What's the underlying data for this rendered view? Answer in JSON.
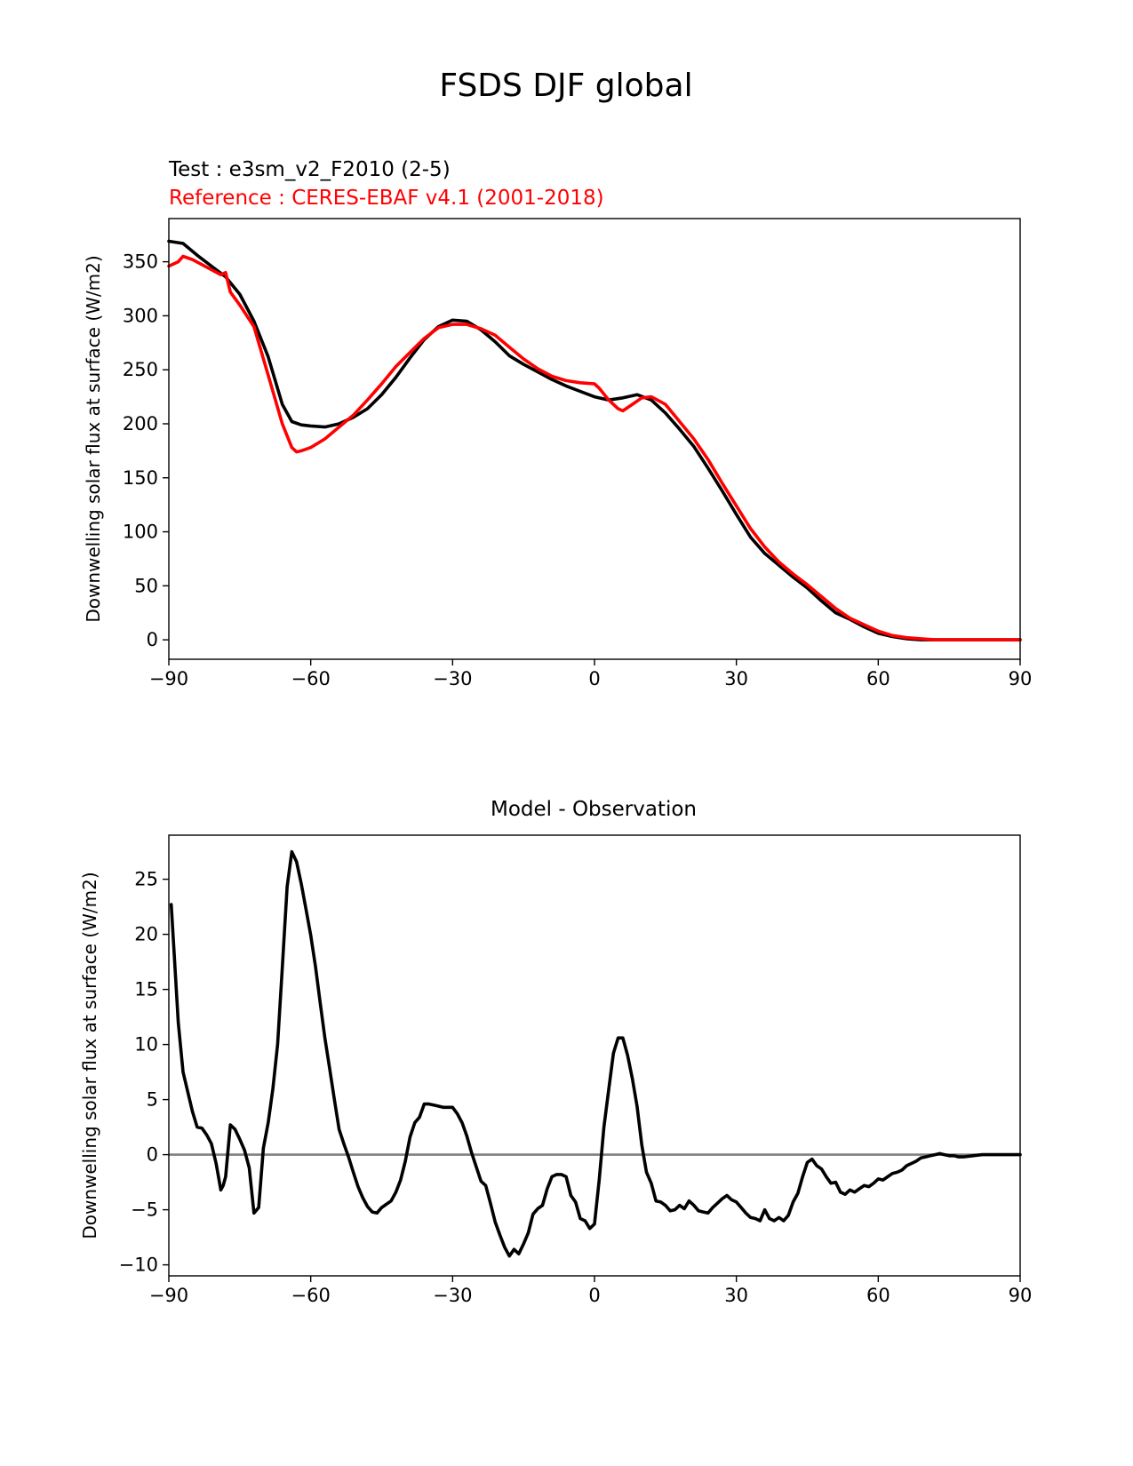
{
  "figure": {
    "title": "FSDS DJF global"
  },
  "chart_data": [
    {
      "type": "line",
      "test_label": "Test : e3sm_v2_F2010 (2-5)",
      "reference_label": "Reference : CERES-EBAF v4.1 (2001-2018)",
      "title": "",
      "xlabel": "",
      "ylabel": "Downwelling solar flux at surface (W/m2)",
      "xlim": [
        -90,
        90
      ],
      "ylim": [
        -18,
        390
      ],
      "xticks": [
        -90,
        -60,
        -30,
        0,
        30,
        60,
        90
      ],
      "xtick_labels": [
        "−90",
        "−60",
        "−30",
        "0",
        "30",
        "60",
        "90"
      ],
      "yticks": [
        0,
        50,
        100,
        150,
        200,
        250,
        300,
        350
      ],
      "ytick_labels": [
        "0",
        "50",
        "100",
        "150",
        "200",
        "250",
        "300",
        "350"
      ],
      "grid": false,
      "series": [
        {
          "color": "#000000",
          "x": [
            -90,
            -87,
            -84,
            -81,
            -78,
            -75,
            -72,
            -69,
            -66,
            -64,
            -62,
            -60,
            -57,
            -54,
            -51,
            -48,
            -45,
            -42,
            -39,
            -36,
            -33,
            -30,
            -27,
            -24,
            -21,
            -18,
            -15,
            -12,
            -9,
            -6,
            -3,
            0,
            3,
            6,
            9,
            12,
            15,
            18,
            21,
            24,
            27,
            30,
            33,
            36,
            39,
            42,
            45,
            48,
            51,
            54,
            57,
            60,
            63,
            66,
            69,
            72,
            75,
            78,
            81,
            84,
            87,
            90
          ],
          "y": [
            369,
            367,
            356,
            346,
            336,
            320,
            295,
            262,
            218,
            202,
            199,
            198,
            197,
            200,
            206,
            214,
            227,
            243,
            261,
            278,
            290,
            296,
            295,
            287,
            276,
            263,
            255,
            248,
            241,
            235,
            230,
            225,
            222,
            224,
            227,
            222,
            210,
            195,
            179,
            159,
            138,
            116,
            95,
            80,
            69,
            58,
            48,
            36,
            25,
            19,
            12,
            6,
            3,
            1,
            0,
            0,
            0,
            0,
            0,
            0,
            0,
            0
          ]
        },
        {
          "color": "#ff0000",
          "x": [
            -90,
            -88,
            -87,
            -85,
            -82,
            -79,
            -78,
            -77,
            -75,
            -72,
            -69,
            -66,
            -64,
            -63,
            -62,
            -60,
            -57,
            -54,
            -51,
            -48,
            -45,
            -42,
            -39,
            -36,
            -33,
            -30,
            -27,
            -24,
            -21,
            -18,
            -15,
            -12,
            -9,
            -6,
            -3,
            0,
            1,
            3,
            5,
            6,
            8,
            10,
            12,
            15,
            18,
            21,
            24,
            27,
            30,
            33,
            36,
            39,
            42,
            45,
            48,
            51,
            54,
            57,
            60,
            63,
            66,
            69,
            72,
            75,
            78,
            81,
            84,
            87,
            90
          ],
          "y": [
            346,
            350,
            355,
            352,
            345,
            338,
            340,
            322,
            310,
            290,
            245,
            200,
            178,
            174,
            175,
            178,
            186,
            197,
            208,
            222,
            237,
            253,
            266,
            279,
            289,
            292,
            292,
            288,
            282,
            271,
            260,
            251,
            244,
            240,
            238,
            237,
            233,
            222,
            214,
            212,
            218,
            224,
            225,
            218,
            202,
            186,
            167,
            145,
            124,
            103,
            86,
            72,
            61,
            51,
            40,
            29,
            20,
            14,
            8,
            4,
            2,
            1,
            0,
            0,
            0,
            0,
            0,
            0,
            0
          ]
        }
      ]
    },
    {
      "type": "line",
      "title": "Model - Observation",
      "xlabel": "",
      "ylabel": "Downwelling solar flux at surface (W/m2)",
      "xlim": [
        -90,
        90
      ],
      "ylim": [
        -11,
        29
      ],
      "xticks": [
        -90,
        -60,
        -30,
        0,
        30,
        60,
        90
      ],
      "xtick_labels": [
        "−90",
        "−60",
        "−30",
        "0",
        "30",
        "60",
        "90"
      ],
      "yticks": [
        -10,
        -5,
        0,
        5,
        10,
        15,
        20,
        25
      ],
      "ytick_labels": [
        "−10",
        "−5",
        "0",
        "5",
        "10",
        "15",
        "20",
        "25"
      ],
      "grid": false,
      "zero_line_color": "#808080",
      "series": [
        {
          "color": "#000000",
          "x": [
            -89.5,
            -89,
            -88,
            -87,
            -86,
            -85,
            -84,
            -83,
            -82,
            -81,
            -80,
            -79,
            -78.5,
            -78,
            -77,
            -76,
            -75,
            -74,
            -73,
            -72,
            -71,
            -70,
            -69,
            -68,
            -67,
            -66,
            -65,
            -64,
            -63,
            -62,
            -61,
            -60,
            -59,
            -58,
            -57,
            -56,
            -55,
            -54,
            -53,
            -52,
            -51,
            -50,
            -49,
            -48,
            -47,
            -46,
            -45,
            -44,
            -43,
            -42,
            -41,
            -40,
            -39,
            -38,
            -37,
            -36,
            -35,
            -34,
            -33,
            -32,
            -31,
            -30,
            -29,
            -28,
            -27,
            -26,
            -25,
            -24,
            -23,
            -22,
            -21,
            -20,
            -19,
            -18,
            -17,
            -16,
            -15,
            -14,
            -13,
            -12,
            -11,
            -10,
            -9,
            -8,
            -7,
            -6,
            -5,
            -4,
            -3,
            -2,
            -1,
            0,
            1,
            2,
            3,
            4,
            5,
            6,
            7,
            8,
            9,
            10,
            11,
            12,
            13,
            14,
            15,
            16,
            17,
            18,
            19,
            20,
            21,
            22,
            23,
            24,
            25,
            26,
            27,
            28,
            29,
            30,
            31,
            32,
            33,
            34,
            35,
            36,
            37,
            38,
            39,
            40,
            41,
            42,
            43,
            44,
            45,
            46,
            47,
            48,
            49,
            50,
            51,
            52,
            53,
            54,
            55,
            56,
            57,
            58,
            59,
            60,
            61,
            62,
            63,
            64,
            65,
            66,
            67,
            68,
            69,
            70,
            71,
            72,
            73,
            74,
            75,
            76,
            77,
            78,
            80,
            82,
            84,
            86,
            88,
            90
          ],
          "y": [
            22.7,
            19.2,
            12.0,
            7.5,
            5.7,
            3.9,
            2.5,
            2.4,
            1.8,
            1.0,
            -0.8,
            -3.2,
            -2.8,
            -2.0,
            2.7,
            2.3,
            1.4,
            0.4,
            -1.2,
            -5.3,
            -4.8,
            0.6,
            2.9,
            6.0,
            10.0,
            17.0,
            24.3,
            27.5,
            26.6,
            24.6,
            22.3,
            19.9,
            17.1,
            13.8,
            10.6,
            7.8,
            5.0,
            2.3,
            1.0,
            -0.2,
            -1.6,
            -2.9,
            -3.9,
            -4.7,
            -5.2,
            -5.3,
            -4.8,
            -4.5,
            -4.2,
            -3.4,
            -2.3,
            -0.6,
            1.6,
            2.9,
            3.4,
            4.6,
            4.6,
            4.5,
            4.4,
            4.3,
            4.3,
            4.3,
            3.7,
            2.9,
            1.7,
            0.2,
            -1.1,
            -2.4,
            -2.8,
            -4.4,
            -6.1,
            -7.3,
            -8.4,
            -9.2,
            -8.6,
            -9.0,
            -8.1,
            -7.1,
            -5.4,
            -4.9,
            -4.6,
            -3.1,
            -2.0,
            -1.8,
            -1.8,
            -2.0,
            -3.7,
            -4.3,
            -5.8,
            -6.0,
            -6.7,
            -6.3,
            -2.3,
            2.5,
            5.9,
            9.2,
            10.6,
            10.6,
            9.0,
            6.9,
            4.4,
            0.9,
            -1.6,
            -2.6,
            -4.2,
            -4.3,
            -4.6,
            -5.1,
            -5.0,
            -4.6,
            -4.9,
            -4.2,
            -4.6,
            -5.1,
            -5.2,
            -5.3,
            -4.8,
            -4.4,
            -4.0,
            -3.7,
            -4.1,
            -4.3,
            -4.8,
            -5.3,
            -5.7,
            -5.8,
            -6.0,
            -5.0,
            -5.8,
            -6.0,
            -5.7,
            -6.0,
            -5.5,
            -4.3,
            -3.5,
            -2.0,
            -0.7,
            -0.4,
            -1.0,
            -1.3,
            -2.0,
            -2.6,
            -2.5,
            -3.4,
            -3.6,
            -3.2,
            -3.4,
            -3.1,
            -2.8,
            -2.9,
            -2.6,
            -2.2,
            -2.3,
            -2.0,
            -1.7,
            -1.6,
            -1.4,
            -1.0,
            -0.8,
            -0.6,
            -0.3,
            -0.2,
            -0.1,
            0.0,
            0.1,
            0.0,
            -0.1,
            -0.1,
            -0.2,
            -0.2,
            -0.1,
            0.0,
            0.0,
            0.0,
            0.0,
            0.0
          ]
        }
      ]
    }
  ]
}
